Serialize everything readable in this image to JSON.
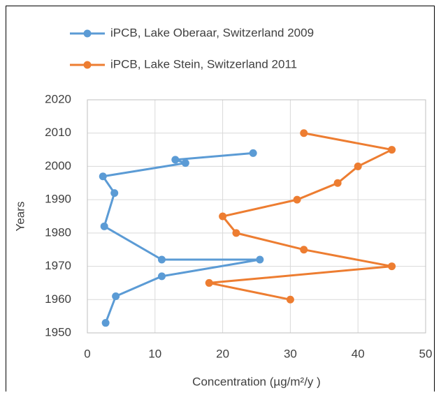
{
  "chart_data": {
    "type": "line",
    "xlabel": "Concentration (µg/m²/y )",
    "ylabel": "Years",
    "xlim": [
      0,
      50
    ],
    "xticks": [
      0,
      10,
      20,
      30,
      40,
      50
    ],
    "ylim": [
      1950,
      2020
    ],
    "yticks": [
      1950,
      1960,
      1970,
      1980,
      1990,
      2000,
      2010,
      2020
    ],
    "grid": true,
    "legend": "top",
    "series": [
      {
        "name": "iPCB, Lake Oberaar, Switzerland 2009",
        "color": "#5b9bd5",
        "x": [
          2.7,
          4.2,
          11,
          25.5,
          11,
          2.5,
          4,
          2.3,
          14.5,
          13,
          24.5
        ],
        "y": [
          1953,
          1961,
          1967,
          1972,
          1972,
          1982,
          1992,
          1997,
          2001,
          2002,
          2004
        ]
      },
      {
        "name": "iPCB, Lake Stein, Switzerland 2011",
        "color": "#ed7d31",
        "x": [
          30,
          18,
          45,
          32,
          22,
          20,
          31,
          37,
          40,
          45,
          32
        ],
        "y": [
          1960,
          1965,
          1970,
          1975,
          1980,
          1985,
          1990,
          1995,
          2000,
          2005,
          2010
        ]
      }
    ]
  }
}
